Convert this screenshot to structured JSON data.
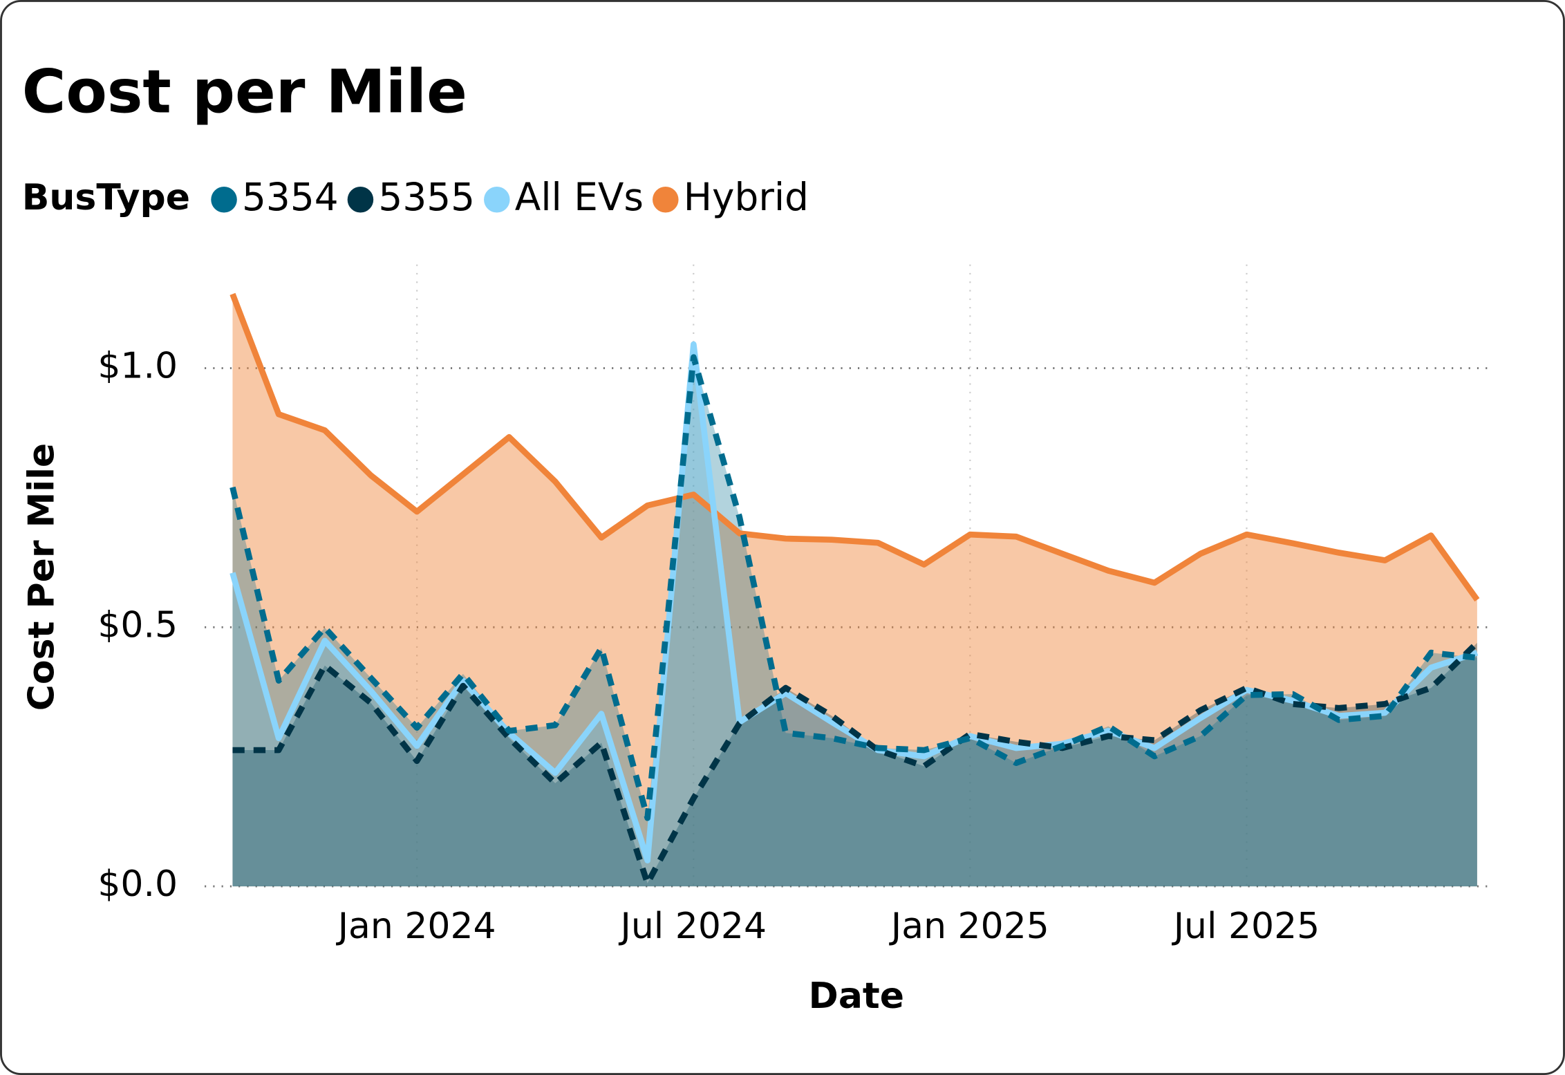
{
  "chart_data": {
    "type": "area",
    "title": "Cost per Mile",
    "legend_title": "BusType",
    "x_label": "Date",
    "y_label": "Cost Per Mile",
    "x": [
      "2023-09",
      "2023-10",
      "2023-11",
      "2023-12",
      "2024-01",
      "2024-02",
      "2024-03",
      "2024-04",
      "2024-05",
      "2024-06",
      "2024-07",
      "2024-08",
      "2024-09",
      "2024-10",
      "2024-11",
      "2024-12",
      "2025-01",
      "2025-02",
      "2025-03",
      "2025-04",
      "2025-05",
      "2025-06",
      "2025-07",
      "2025-08",
      "2025-09",
      "2025-10",
      "2025-11",
      "2025-12"
    ],
    "xlim": [
      "2023-09",
      "2025-12"
    ],
    "xticks": [
      {
        "value": "2024-01",
        "label": "Jan 2024"
      },
      {
        "value": "2024-07",
        "label": "Jul 2024"
      },
      {
        "value": "2025-01",
        "label": "Jan 2025"
      },
      {
        "value": "2025-07",
        "label": "Jul 2025"
      }
    ],
    "ylim": [
      0,
      1.2
    ],
    "yticks": [
      {
        "value": 0,
        "label": "$0.0"
      },
      {
        "value": 0.5,
        "label": "$0.5"
      },
      {
        "value": 1.0,
        "label": "$1.0"
      }
    ],
    "grid": true,
    "series": [
      {
        "name": "5354",
        "color": "#006c8e",
        "style": "dashed",
        "values": [
          0.77,
          0.397,
          0.499,
          0.402,
          0.306,
          0.41,
          0.3,
          0.311,
          0.46,
          0.132,
          1.021,
          0.712,
          0.296,
          0.286,
          0.267,
          0.263,
          0.286,
          0.238,
          0.271,
          0.309,
          0.251,
          0.29,
          0.369,
          0.371,
          0.321,
          0.329,
          0.451,
          0.441
        ]
      },
      {
        "name": "5355",
        "color": "#003447",
        "style": "dashed",
        "values": [
          0.263,
          0.263,
          0.426,
          0.354,
          0.242,
          0.387,
          0.286,
          0.199,
          0.277,
          0.006,
          0.17,
          0.315,
          0.383,
          0.329,
          0.263,
          0.232,
          0.294,
          0.279,
          0.267,
          0.29,
          0.282,
          0.34,
          0.383,
          0.352,
          0.344,
          0.352,
          0.383,
          0.47
        ]
      },
      {
        "name": "All EVs",
        "color": "#8ad4fb",
        "style": "solid",
        "values": [
          0.605,
          0.286,
          0.474,
          0.377,
          0.271,
          0.397,
          0.296,
          0.219,
          0.333,
          0.05,
          1.046,
          0.317,
          0.373,
          0.317,
          0.263,
          0.251,
          0.29,
          0.267,
          0.275,
          0.3,
          0.267,
          0.325,
          0.379,
          0.358,
          0.329,
          0.335,
          0.422,
          0.451
        ]
      },
      {
        "name": "Hybrid",
        "color": "#f0843a",
        "style": "solid",
        "values": [
          1.143,
          0.911,
          0.88,
          0.793,
          0.723,
          0.795,
          0.867,
          0.781,
          0.673,
          0.735,
          0.756,
          0.681,
          0.671,
          0.669,
          0.663,
          0.621,
          0.679,
          0.675,
          0.642,
          0.609,
          0.586,
          0.642,
          0.679,
          0.662,
          0.644,
          0.629,
          0.677,
          0.553
        ]
      }
    ]
  }
}
